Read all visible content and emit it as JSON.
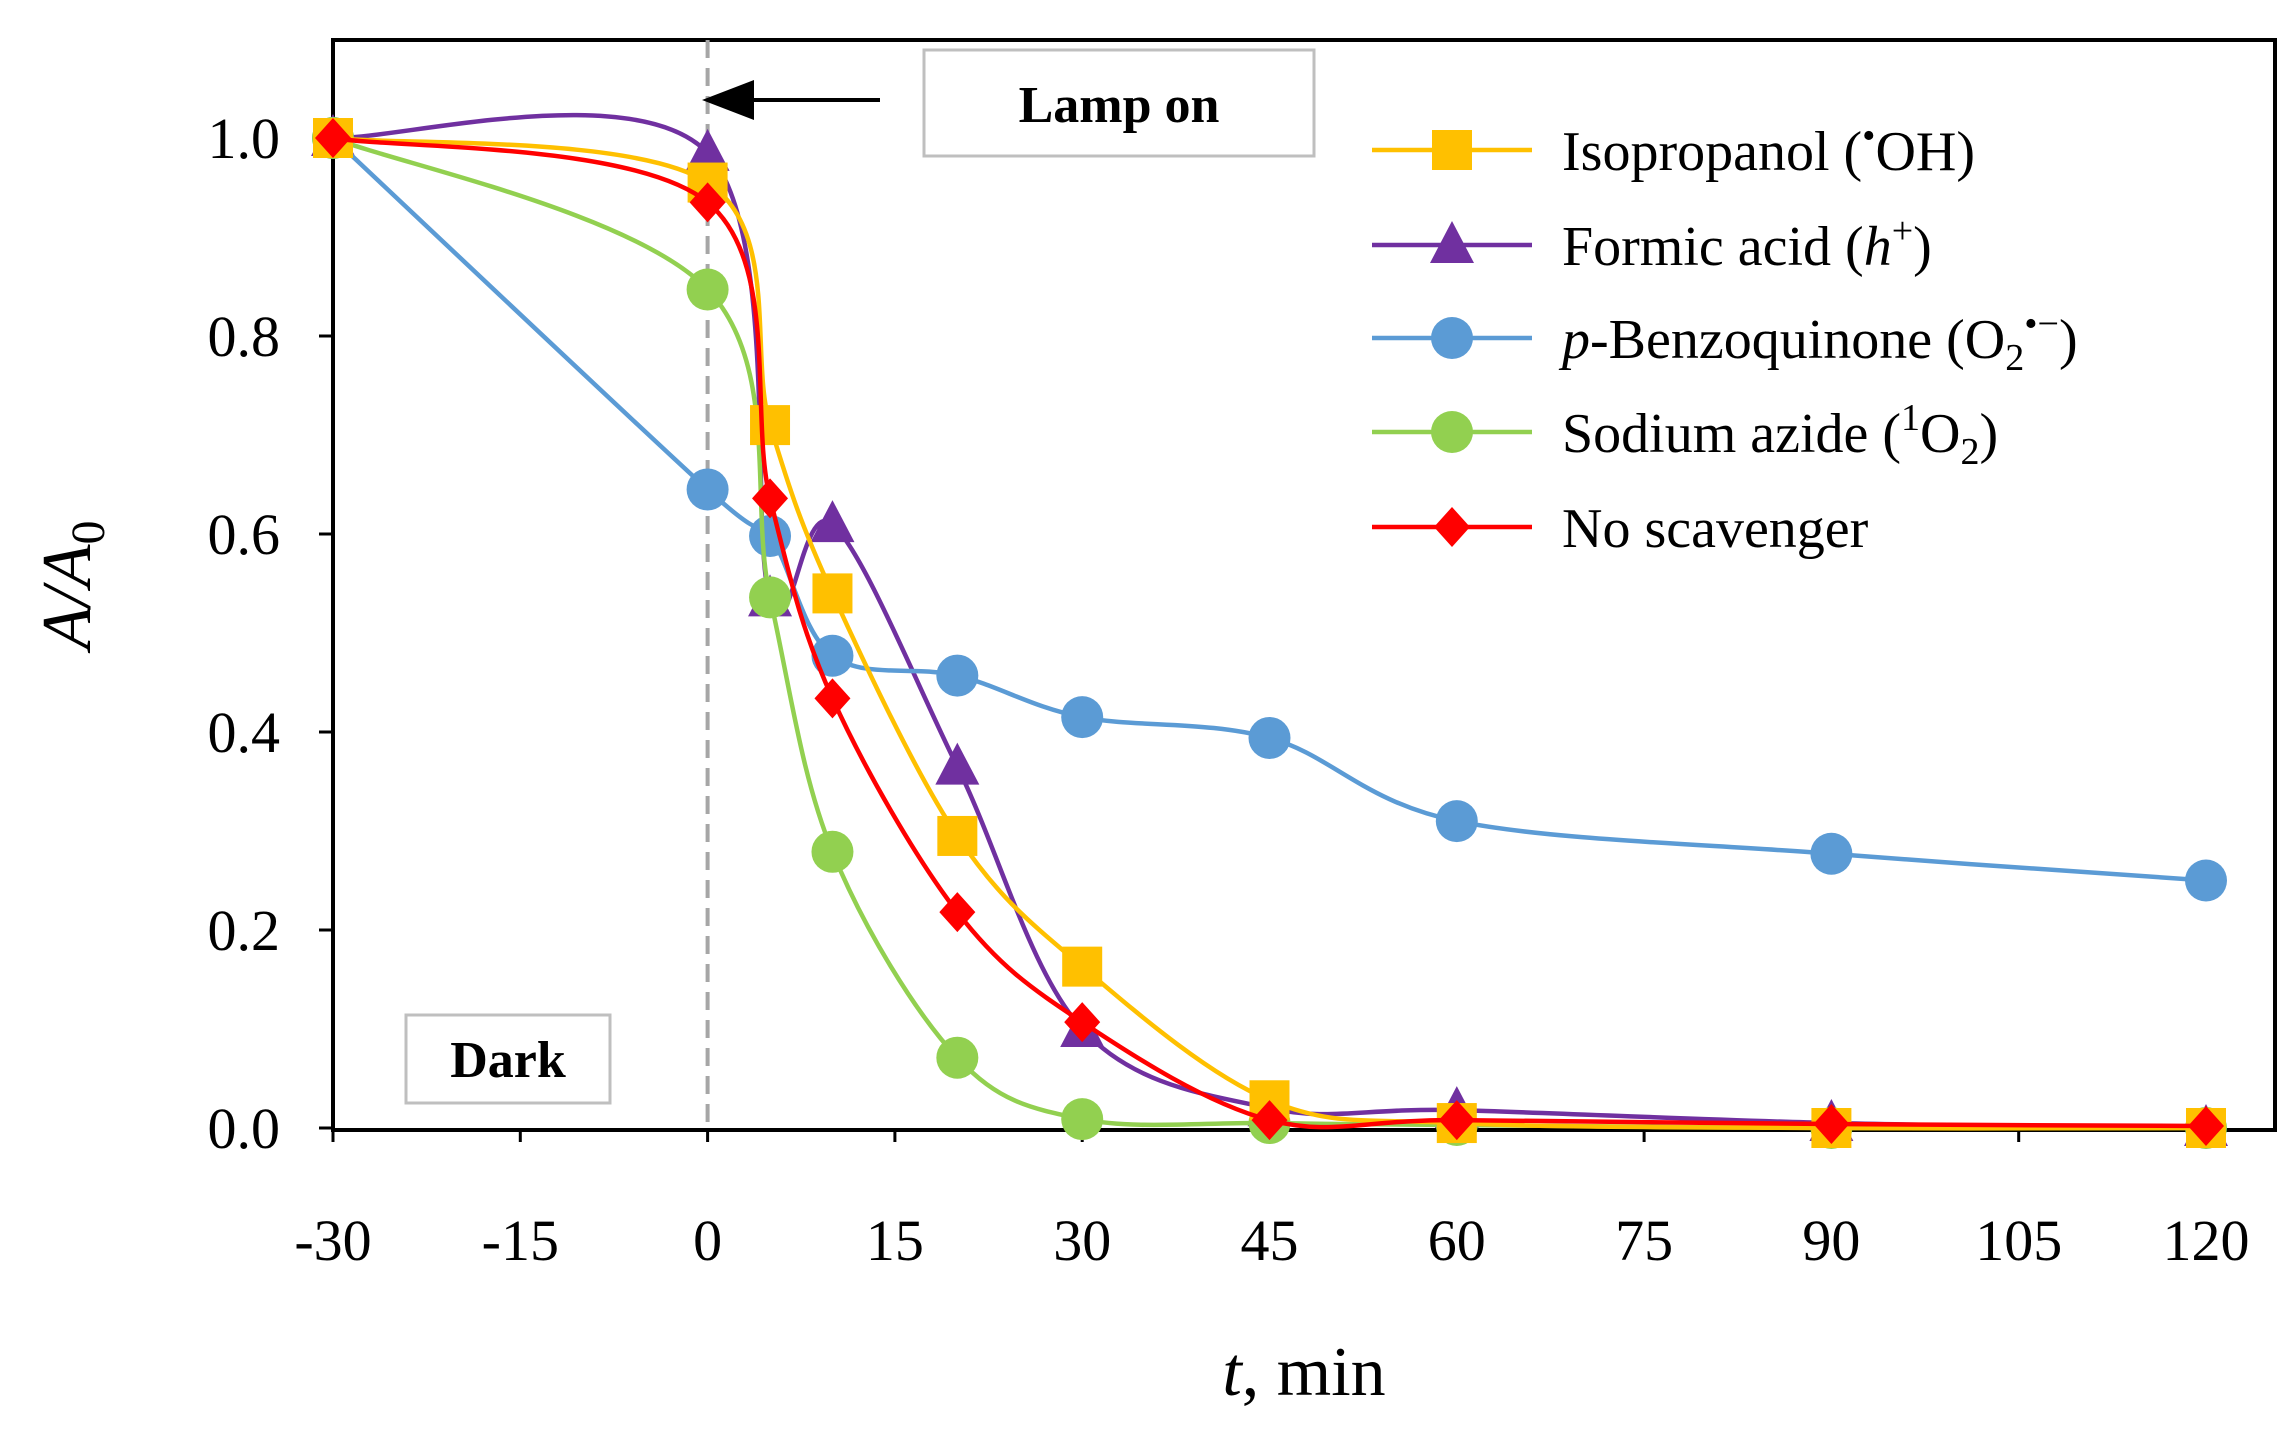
{
  "chart_data": {
    "type": "line",
    "title": "",
    "xlabel_var": "t",
    "xlabel_rest": ", min",
    "ylabel_var": "A/A",
    "ylabel_sub": "0",
    "x_ticks": [
      "-30",
      "-15",
      "0",
      "15",
      "30",
      "45",
      "60",
      "75",
      "90",
      "105",
      "120"
    ],
    "x_tick_note": "axis is piecewise: -30..60 with 15-min spacing, then 60..120 compressed (each label 75/90/105/120 one grid step)",
    "y_ticks": [
      "0.0",
      "0.2",
      "0.4",
      "0.6",
      "0.8",
      "1.0"
    ],
    "ylim": [
      0,
      1.1
    ],
    "x": [
      -30,
      0,
      5,
      10,
      20,
      30,
      45,
      60,
      90,
      120
    ],
    "series": [
      {
        "name": "Isopropanol",
        "legend_main": "Isopropanol (",
        "legend_sup": "•",
        "legend_tail": "OH)",
        "color": "#FFC000",
        "marker": "square",
        "values": [
          1.0,
          0.955,
          0.71,
          0.54,
          0.295,
          0.163,
          0.028,
          0.005,
          0.0,
          0.0
        ]
      },
      {
        "name": "Formic acid",
        "legend_main": "Formic acid (",
        "legend_italic": "h",
        "legend_sup": "+",
        "legend_tail": ")",
        "color": "#7030A0",
        "marker": "triangle",
        "values": [
          1.0,
          0.985,
          0.535,
          0.61,
          0.365,
          0.1,
          0.02,
          0.018,
          0.005,
          0.0
        ]
      },
      {
        "name": "p-Benzoquinone",
        "legend_italic": "p",
        "legend_main": "-Benzoquinone (O",
        "legend_sub": "2",
        "legend_sup": "•−",
        "legend_tail": ")",
        "color": "#5B9BD5",
        "marker": "circle",
        "values": [
          1.0,
          0.645,
          0.598,
          0.477,
          0.457,
          0.415,
          0.394,
          0.31,
          0.277,
          0.25
        ]
      },
      {
        "name": "Sodium azide",
        "legend_main": "Sodium azide (",
        "legend_sup": "1",
        "legend_after_sup": "O",
        "legend_sub": "2",
        "legend_tail": ")",
        "color": "#92D050",
        "marker": "circle",
        "values": [
          1.0,
          0.847,
          0.536,
          0.279,
          0.071,
          0.009,
          0.005,
          0.003,
          0.0,
          0.0
        ]
      },
      {
        "name": "No scavenger",
        "legend_main": "No scavenger",
        "color": "#FF0000",
        "marker": "diamond",
        "values": [
          1.0,
          0.935,
          0.636,
          0.434,
          0.218,
          0.107,
          0.008,
          0.008,
          0.004,
          0.002
        ]
      }
    ],
    "annotations": {
      "lamp_on": "Lamp on",
      "dark": "Dark"
    }
  }
}
